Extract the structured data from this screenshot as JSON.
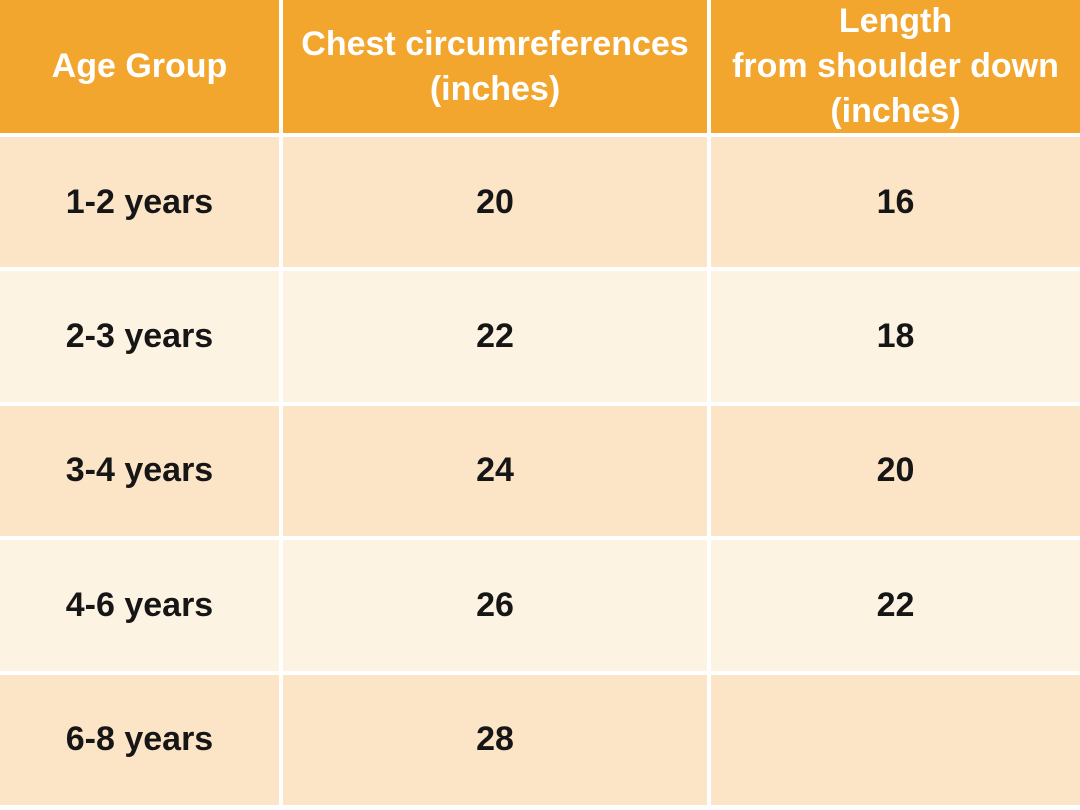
{
  "theme": {
    "header_bg": "#F2A62E",
    "header_text": "#FFFFFF",
    "row_dark_bg": "#FCE4C6",
    "row_light_bg": "#FDF3E3",
    "divider": "#FFFFFF",
    "cell_text": "#161616"
  },
  "table": {
    "headers": [
      {
        "label": "Age Group"
      },
      {
        "label": "Chest circumreferences\n(inches)"
      },
      {
        "label": "Length\nfrom shoulder down\n(inches)"
      }
    ],
    "rows": [
      {
        "age": "1-2 years",
        "chest": "20",
        "length": "16"
      },
      {
        "age": "2-3 years",
        "chest": "22",
        "length": "18"
      },
      {
        "age": "3-4 years",
        "chest": "24",
        "length": "20"
      },
      {
        "age": "4-6 years",
        "chest": "26",
        "length": "22"
      },
      {
        "age": "6-8 years",
        "chest": "28",
        "length": ""
      }
    ]
  },
  "chart_data": {
    "type": "table",
    "title": "",
    "columns": [
      "Age Group",
      "Chest circumreferences (inches)",
      "Length from shoulder down (inches)"
    ],
    "rows": [
      [
        "1-2 years",
        20,
        16
      ],
      [
        "2-3 years",
        22,
        18
      ],
      [
        "3-4 years",
        24,
        20
      ],
      [
        "4-6 years",
        26,
        22
      ],
      [
        "6-8 years",
        28,
        null
      ]
    ],
    "layout_hints": {
      "header_fill": "#F2A62E",
      "alternating_row_fills": [
        "#FCE4C6",
        "#FDF3E3"
      ],
      "grid": "white cell dividers",
      "last_row_length_cell_empty": true
    }
  }
}
